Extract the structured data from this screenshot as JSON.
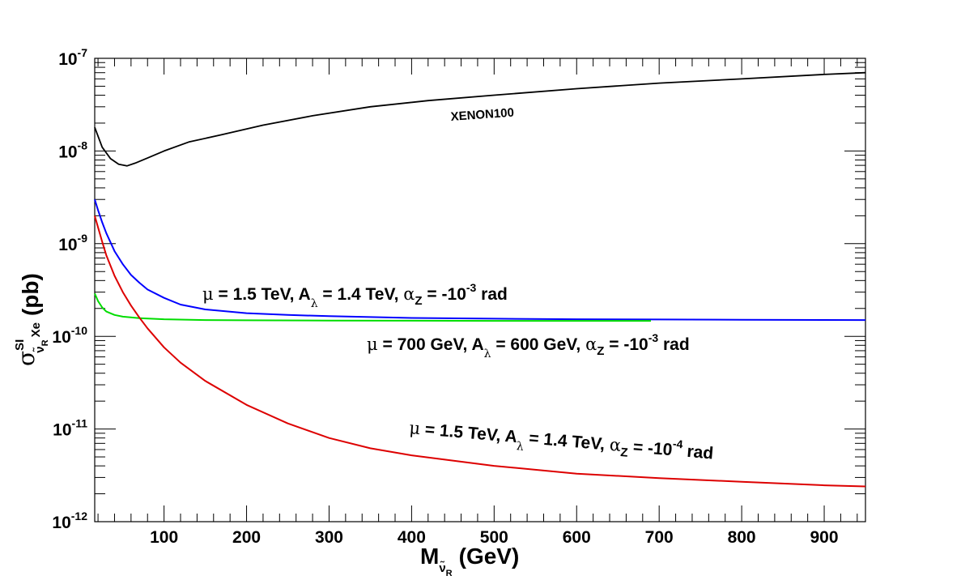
{
  "chart_data": {
    "type": "line",
    "title": "",
    "x_axis": {
      "label_main": "M",
      "label_sub": "ν̃",
      "label_subsub": "R",
      "label_units": "(GeV)",
      "range": [
        16,
        950
      ],
      "scale": "linear",
      "ticks": [
        100,
        200,
        300,
        400,
        500,
        600,
        700,
        800,
        900
      ],
      "tick_labels": [
        "100",
        "200",
        "300",
        "400",
        "500",
        "600",
        "700",
        "800",
        "900"
      ]
    },
    "y_axis": {
      "label_main": "σ",
      "label_sup": "SI",
      "label_sub": "ν̃",
      "label_subsub": "R",
      "label_sub2": "Xe",
      "label_units": "(pb)",
      "range": [
        1e-12,
        1e-07
      ],
      "scale": "log",
      "ticks": [
        {
          "base": "10",
          "exp": "-7",
          "value": 1e-07
        },
        {
          "base": "10",
          "exp": "-8",
          "value": 1e-08
        },
        {
          "base": "10",
          "exp": "-9",
          "value": 1e-09
        },
        {
          "base": "10",
          "exp": "-10",
          "value": 1e-10
        },
        {
          "base": "10",
          "exp": "-11",
          "value": 1e-11
        },
        {
          "base": "10",
          "exp": "-12",
          "value": 1e-12
        }
      ]
    },
    "series": [
      {
        "name": "XENON100",
        "color": "#000000",
        "x": [
          16,
          25,
          35,
          45,
          55,
          65,
          80,
          100,
          130,
          170,
          220,
          280,
          350,
          420,
          500,
          600,
          700,
          800,
          900,
          950
        ],
        "y": [
          1.8e-08,
          1.1e-08,
          8.3e-09,
          7.2e-09,
          6.9e-09,
          7.4e-09,
          8.4e-09,
          1e-08,
          1.25e-08,
          1.5e-08,
          1.9e-08,
          2.4e-08,
          3e-08,
          3.5e-08,
          4e-08,
          4.7e-08,
          5.4e-08,
          6e-08,
          6.7e-08,
          7e-08
        ]
      },
      {
        "name": "mu=1.5TeV, alpha_Z=-1e-3",
        "color": "#0000ff",
        "x": [
          16,
          20,
          25,
          30,
          40,
          50,
          60,
          70,
          80,
          100,
          120,
          150,
          200,
          250,
          300,
          400,
          500,
          600,
          700,
          800,
          950
        ],
        "y": [
          3e-09,
          2.3e-09,
          1.7e-09,
          1.3e-09,
          8.3e-10,
          6e-10,
          4.6e-10,
          3.8e-10,
          3.2e-10,
          2.6e-10,
          2.2e-10,
          1.95e-10,
          1.78e-10,
          1.7e-10,
          1.65e-10,
          1.58e-10,
          1.55e-10,
          1.53e-10,
          1.52e-10,
          1.51e-10,
          1.5e-10
        ]
      },
      {
        "name": "mu=700GeV, alpha_Z=-1e-3",
        "color": "#00dd00",
        "x": [
          16,
          20,
          25,
          30,
          40,
          50,
          70,
          100,
          150,
          200,
          300,
          400,
          500,
          600,
          690
        ],
        "y": [
          2.9e-10,
          2.4e-10,
          2.05e-10,
          1.85e-10,
          1.7e-10,
          1.63e-10,
          1.57e-10,
          1.53e-10,
          1.5e-10,
          1.49e-10,
          1.48e-10,
          1.475e-10,
          1.47e-10,
          1.47e-10,
          1.47e-10
        ]
      },
      {
        "name": "mu=1.5TeV, alpha_Z=-1e-4",
        "color": "#dd0000",
        "x": [
          16,
          20,
          25,
          30,
          40,
          50,
          60,
          70,
          80,
          100,
          120,
          150,
          200,
          250,
          300,
          350,
          400,
          500,
          600,
          700,
          800,
          900,
          950
        ],
        "y": [
          2e-09,
          1.5e-09,
          1.05e-09,
          7.5e-10,
          4.5e-10,
          3e-10,
          2.15e-10,
          1.6e-10,
          1.22e-10,
          7.6e-11,
          5.2e-11,
          3.3e-11,
          1.82e-11,
          1.15e-11,
          8e-12,
          6.2e-12,
          5.2e-12,
          4e-12,
          3.3e-12,
          2.95e-12,
          2.7e-12,
          2.47e-12,
          2.4e-12
        ]
      }
    ],
    "annotations": [
      {
        "id": "xenon",
        "text": "XENON100"
      },
      {
        "id": "blue",
        "mu": "μ",
        "rest1": " = 1.5 TeV, A",
        "lambda": "λ",
        "rest2": " = 1.4 TeV, ",
        "alpha": "α",
        "sub": "Z",
        "rest3": " = -10",
        "exp": "-3",
        "rest4": " rad"
      },
      {
        "id": "green",
        "mu": "μ",
        "rest1": " = 700 GeV, A",
        "lambda": "λ",
        "rest2": " = 600 GeV, ",
        "alpha": "α",
        "sub": "Z",
        "rest3": " = -10",
        "exp": "-3",
        "rest4": " rad"
      },
      {
        "id": "red",
        "mu": "μ",
        "rest1": " = 1.5 TeV, A",
        "lambda": "λ",
        "rest2": " = 1.4 TeV, ",
        "alpha": "α",
        "sub": "Z",
        "rest3": " = -10",
        "exp": "-4",
        "rest4": " rad"
      }
    ],
    "grid": false,
    "legend": "none"
  }
}
